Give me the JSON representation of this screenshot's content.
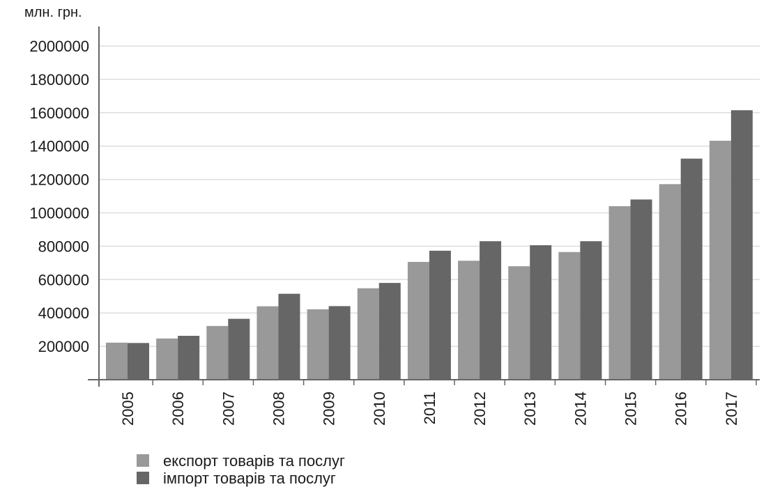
{
  "chart_data": {
    "type": "bar",
    "unit_label": "млн. грн.",
    "categories": [
      "2005",
      "2006",
      "2007",
      "2008",
      "2009",
      "2010",
      "2011",
      "2012",
      "2013",
      "2014",
      "2015",
      "2016",
      "2017"
    ],
    "series": [
      {
        "name": "експорт товарів та послуг",
        "color": "#999999",
        "values": [
          222000,
          247000,
          322000,
          440000,
          422000,
          548000,
          706000,
          713000,
          680000,
          765000,
          1040000,
          1172000,
          1432000
        ]
      },
      {
        "name": "імпорт товарів та послуг",
        "color": "#666666",
        "values": [
          220000,
          263000,
          365000,
          515000,
          441000,
          580000,
          773000,
          830000,
          806000,
          830000,
          1080000,
          1325000,
          1615000
        ]
      }
    ],
    "yticks": [
      200000,
      400000,
      600000,
      800000,
      1000000,
      1200000,
      1400000,
      1600000,
      1800000,
      2000000
    ],
    "ylim": [
      0,
      2000000
    ],
    "grid": true,
    "legend_position": "bottom-left"
  }
}
